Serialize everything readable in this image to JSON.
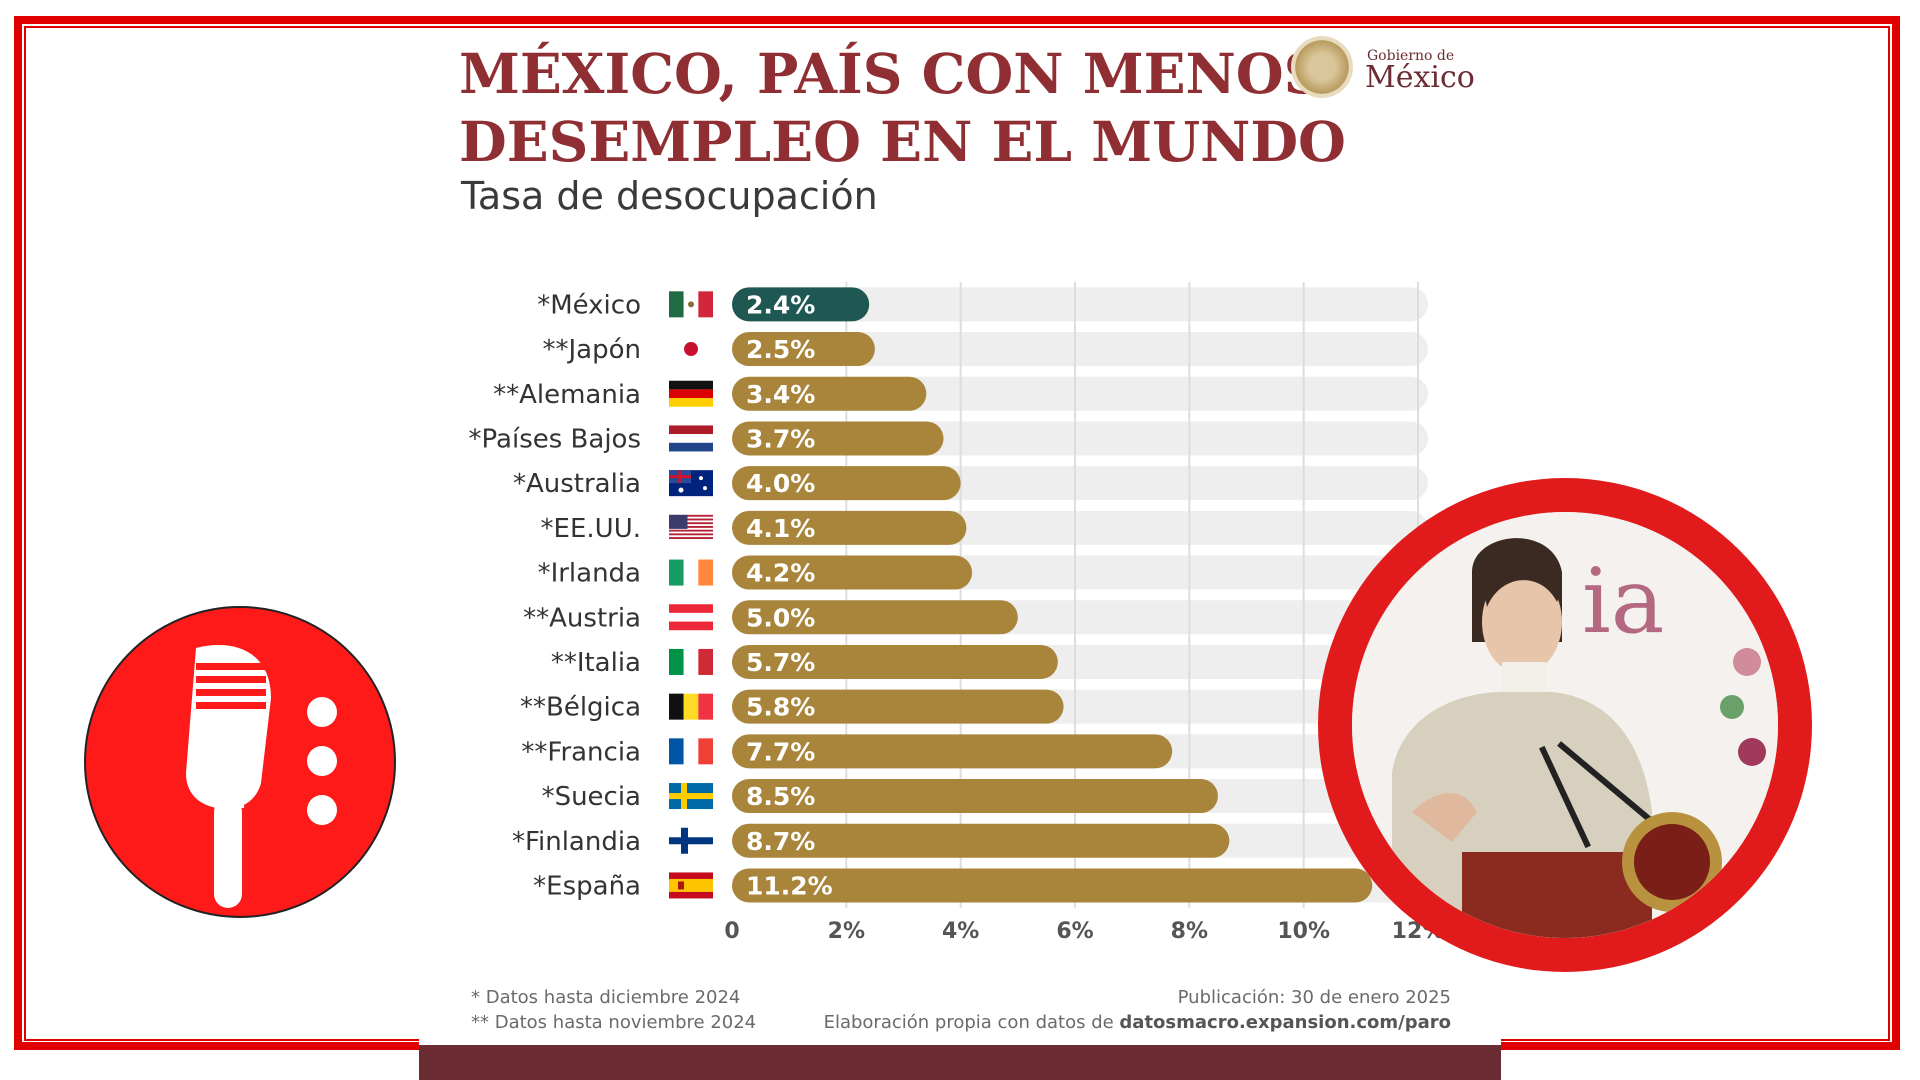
{
  "infographic": {
    "title_line1": "MÉXICO, PAÍS CON MENOS",
    "title_line2": "DESEMPLEO EN EL MUNDO",
    "subtitle": "Tasa de desocupación",
    "logo_small": "Gobierno de",
    "logo_big": "México",
    "footnote1": "* Datos hasta diciembre 2024",
    "footnote2": "** Datos hasta noviembre 2024",
    "publication": "Publicación: 30 de enero 2025",
    "source_prefix": "Elaboración propia con datos de ",
    "source_site": "datosmacro.expansion.com/paro"
  },
  "colors": {
    "frame": "#e00000",
    "title": "#8f2f33",
    "bar_highlight": "#1f5752",
    "bar_default": "#a8853a",
    "track": "#eeeeee",
    "logo_circle": "#ff1a1a"
  },
  "chart_data": {
    "type": "bar",
    "orientation": "horizontal",
    "title": "MÉXICO, PAÍS CON MENOS DESEMPLEO EN EL MUNDO",
    "subtitle": "Tasa de desocupación",
    "xlabel": "",
    "ylabel": "",
    "xlim": [
      0,
      12
    ],
    "ticks": [
      "0",
      "2%",
      "4%",
      "6%",
      "8%",
      "10%",
      "12%"
    ],
    "grid": true,
    "categories": [
      "*México",
      "**Japón",
      "**Alemania",
      "*Países Bajos",
      "*Australia",
      "*EE.UU.",
      "*Irlanda",
      "**Austria",
      "**Italia",
      "**Bélgica",
      "**Francia",
      "*Suecia",
      "*Finlandia",
      "*España"
    ],
    "flags": [
      "mexico",
      "japan",
      "germany",
      "netherlands",
      "australia",
      "usa",
      "ireland",
      "austria",
      "italy",
      "belgium",
      "france",
      "sweden",
      "finland",
      "spain"
    ],
    "values": [
      2.4,
      2.5,
      3.4,
      3.7,
      4.0,
      4.1,
      4.2,
      5.0,
      5.7,
      5.8,
      7.7,
      8.5,
      8.7,
      11.2
    ],
    "value_labels": [
      "2.4%",
      "2.5%",
      "3.4%",
      "3.7%",
      "4.0%",
      "4.1%",
      "4.2%",
      "5.0%",
      "5.7%",
      "5.8%",
      "7.7%",
      "8.5%",
      "8.7%",
      "11.2%"
    ],
    "highlight": "*México"
  },
  "icons": {
    "left": "microphone-icon",
    "right": "speaker-photo"
  }
}
